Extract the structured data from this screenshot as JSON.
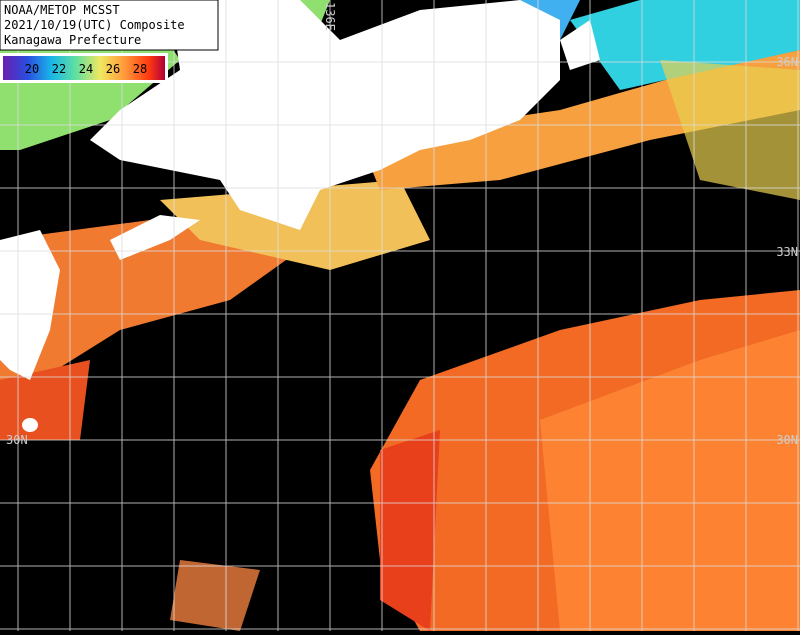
{
  "header": {
    "lines": [
      "NOAA/METOP MCSST",
      "2021/10/19(UTC) Composite",
      "Kanagawa Prefecture"
    ]
  },
  "colorbar": {
    "labels": [
      "20",
      "22",
      "24",
      "26",
      "28"
    ]
  },
  "grid_labels": {
    "lon": [
      "136E"
    ],
    "lat_right": [
      "36N",
      "33N",
      "30N"
    ],
    "lat_left": [
      "30N"
    ]
  }
}
